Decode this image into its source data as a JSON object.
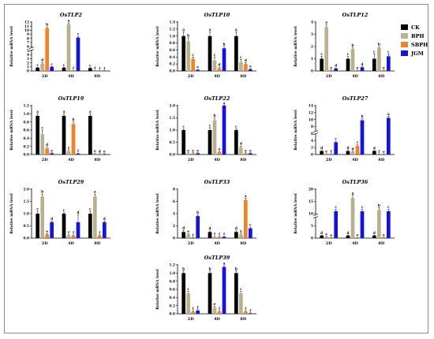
{
  "legend": {
    "placement": "top-right",
    "items": [
      {
        "name": "CK",
        "color": "#000000"
      },
      {
        "name": "BPH",
        "color": "#b9b08c"
      },
      {
        "name": "SBPH",
        "color": "#f58220"
      },
      {
        "name": "JGM",
        "color": "#1111ee"
      }
    ]
  },
  "chart_data": [
    {
      "type": "bar",
      "title": "OsTLP2",
      "ylabel": "Relative mRNA level",
      "categories": [
        "2D",
        "4D",
        "8D"
      ],
      "ylim": [
        0,
        12
      ],
      "yticks": [
        0,
        1,
        2,
        3,
        4,
        5,
        6,
        7,
        8,
        9,
        10,
        11,
        12
      ],
      "broken": true,
      "series": [
        {
          "name": "CK",
          "values": [
            0.8,
            0.8,
            0.7
          ],
          "errors": [
            0.1,
            0.1,
            0.1
          ],
          "letters": [
            "c",
            "c",
            "c"
          ]
        },
        {
          "name": "BPH",
          "values": [
            1.8,
            11.5,
            0.05
          ],
          "errors": [
            0.3,
            0.3,
            0.02
          ],
          "letters": [
            "d",
            "a",
            "f"
          ]
        },
        {
          "name": "SBPH",
          "values": [
            10.5,
            0.05,
            0.02
          ],
          "errors": [
            0.3,
            0.02,
            0.01
          ],
          "letters": [
            "b",
            "f",
            "f"
          ]
        },
        {
          "name": "JGM",
          "values": [
            1.0,
            8.2,
            0.02
          ],
          "errors": [
            0.1,
            0.3,
            0.01
          ],
          "letters": [
            "c",
            "c",
            "f"
          ]
        }
      ]
    },
    {
      "type": "bar",
      "title": "OsTLP10",
      "ylabel": "Relative mRNA level",
      "categories": [
        "2D",
        "4D",
        "8D"
      ],
      "ylim": [
        0,
        1.4
      ],
      "yticks": [
        0.0,
        0.2,
        0.4,
        0.6,
        0.8,
        1.0,
        1.2,
        1.4
      ],
      "broken": false,
      "series": [
        {
          "name": "CK",
          "values": [
            1.0,
            1.0,
            1.0
          ],
          "errors": [
            0.12,
            0.12,
            0.12
          ],
          "letters": [
            "a",
            "a",
            "a"
          ]
        },
        {
          "name": "BPH",
          "values": [
            0.85,
            0.3,
            0.25
          ],
          "errors": [
            0.1,
            0.1,
            0.08
          ],
          "letters": [
            "b",
            "c",
            "c"
          ]
        },
        {
          "name": "SBPH",
          "values": [
            0.35,
            0.08,
            0.2
          ],
          "errors": [
            0.05,
            0.03,
            0.04
          ],
          "letters": [
            "c",
            "d",
            "d"
          ]
        },
        {
          "name": "JGM",
          "values": [
            0.03,
            0.65,
            0.05
          ],
          "errors": [
            0.01,
            0.05,
            0.02
          ],
          "letters": [
            "e",
            "b",
            "e"
          ]
        }
      ]
    },
    {
      "type": "bar",
      "title": "OsTLP12",
      "ylabel": "Relative mRNA level",
      "categories": [
        "2D",
        "4D",
        "8D"
      ],
      "ylim": [
        0,
        4
      ],
      "yticks": [
        0,
        1,
        2,
        3,
        4
      ],
      "broken": false,
      "series": [
        {
          "name": "CK",
          "values": [
            1.0,
            1.0,
            1.0
          ],
          "errors": [
            0.2,
            0.2,
            0.4
          ],
          "letters": [
            "c",
            "c",
            "c"
          ]
        },
        {
          "name": "BPH",
          "values": [
            3.6,
            1.8,
            1.9
          ],
          "errors": [
            0.2,
            0.1,
            0.1
          ],
          "letters": [
            "a",
            "b",
            "b"
          ]
        },
        {
          "name": "SBPH",
          "values": [
            0.05,
            0.05,
            0.05
          ],
          "errors": [
            0.02,
            0.02,
            0.02
          ],
          "letters": [
            "e",
            "e",
            "e"
          ]
        },
        {
          "name": "JGM",
          "values": [
            0.2,
            0.3,
            1.2
          ],
          "errors": [
            0.05,
            0.05,
            0.2
          ],
          "letters": [
            "d",
            "d",
            "c"
          ]
        }
      ]
    },
    {
      "type": "bar",
      "title": "OsTLP19",
      "ylabel": "Relative mRNA level",
      "categories": [
        "2D",
        "4D",
        "8D"
      ],
      "ylim": [
        0,
        1.2
      ],
      "yticks": [
        0.0,
        0.2,
        0.4,
        0.6,
        0.8,
        1.0,
        1.2
      ],
      "broken": false,
      "series": [
        {
          "name": "CK",
          "values": [
            0.95,
            0.95,
            0.95
          ],
          "errors": [
            0.05,
            0.05,
            0.05
          ],
          "letters": [
            "a",
            "a",
            "a"
          ]
        },
        {
          "name": "BPH",
          "values": [
            0.5,
            0.08,
            0.02
          ],
          "errors": [
            0.1,
            0.02,
            0.01
          ],
          "letters": [
            "c",
            "f",
            "e"
          ]
        },
        {
          "name": "SBPH",
          "values": [
            0.15,
            0.75,
            0.01
          ],
          "errors": [
            0.03,
            0.05,
            0.01
          ],
          "letters": [
            "d",
            "b",
            "d"
          ]
        },
        {
          "name": "JGM",
          "values": [
            0.03,
            0.02,
            0.01
          ],
          "errors": [
            0.01,
            0.01,
            0.01
          ],
          "letters": [
            "e",
            "f",
            "e"
          ]
        }
      ]
    },
    {
      "type": "bar",
      "title": "OsTLP22",
      "ylabel": "Relative mRNA level",
      "categories": [
        "2D",
        "4D",
        "8D"
      ],
      "ylim": [
        0,
        2.0
      ],
      "yticks": [
        0.0,
        0.5,
        1.0,
        1.5,
        2.0
      ],
      "broken": false,
      "series": [
        {
          "name": "CK",
          "values": [
            1.0,
            1.0,
            1.0
          ],
          "errors": [
            0.05,
            0.1,
            0.05
          ],
          "letters": [
            "c",
            "c",
            "c"
          ]
        },
        {
          "name": "BPH",
          "values": [
            0.05,
            1.4,
            0.3
          ],
          "errors": [
            0.02,
            0.1,
            0.05
          ],
          "letters": [
            "e",
            "b",
            "d"
          ]
        },
        {
          "name": "SBPH",
          "values": [
            0.05,
            0.1,
            0.05
          ],
          "errors": [
            0.02,
            0.03,
            0.02
          ],
          "letters": [
            "e",
            "e",
            "e"
          ]
        },
        {
          "name": "JGM",
          "values": [
            0.05,
            2.0,
            0.05
          ],
          "errors": [
            0.02,
            0.05,
            0.02
          ],
          "letters": [
            "e",
            "a",
            "e"
          ]
        }
      ]
    },
    {
      "type": "bar",
      "title": "OsTLP27",
      "ylabel": "Relative mRNA level",
      "categories": [
        "2D",
        "4D",
        "8D"
      ],
      "ylim": [
        0,
        14
      ],
      "yticks": [
        0,
        2,
        4,
        6,
        8,
        10,
        12,
        14
      ],
      "broken": true,
      "series": [
        {
          "name": "CK",
          "values": [
            1.0,
            1.0,
            1.0
          ],
          "errors": [
            0.2,
            0.2,
            0.1
          ],
          "letters": [
            "d",
            "d",
            "d"
          ]
        },
        {
          "name": "BPH",
          "values": [
            0.2,
            0.8,
            0.1
          ],
          "errors": [
            0.05,
            0.1,
            0.05
          ],
          "letters": [
            "e",
            "d",
            "f"
          ]
        },
        {
          "name": "SBPH",
          "values": [
            0.2,
            2.5,
            0.1
          ],
          "errors": [
            0.05,
            0.3,
            0.05
          ],
          "letters": [
            "f",
            "c",
            "e"
          ]
        },
        {
          "name": "JGM",
          "values": [
            3.5,
            9.8,
            10.5
          ],
          "errors": [
            0.3,
            0.5,
            0.5
          ],
          "letters": [
            "c",
            "b",
            "a"
          ]
        }
      ]
    },
    {
      "type": "bar",
      "title": "OsTLP29",
      "ylabel": "Relative mRNA level",
      "categories": [
        "2D",
        "4D",
        "8D"
      ],
      "ylim": [
        0,
        2.0
      ],
      "yticks": [
        0.0,
        0.5,
        1.0,
        1.5,
        2.0
      ],
      "broken": false,
      "series": [
        {
          "name": "CK",
          "values": [
            1.0,
            1.0,
            1.0
          ],
          "errors": [
            0.1,
            0.05,
            0.1
          ],
          "letters": [
            "c",
            "c",
            "c"
          ]
        },
        {
          "name": "BPH",
          "values": [
            1.7,
            0.1,
            1.7
          ],
          "errors": [
            0.1,
            0.03,
            0.1
          ],
          "letters": [
            "b",
            "f",
            "a"
          ]
        },
        {
          "name": "SBPH",
          "values": [
            0.15,
            0.1,
            0.1
          ],
          "errors": [
            0.03,
            0.03,
            0.03
          ],
          "letters": [
            "e",
            "f",
            "f"
          ]
        },
        {
          "name": "JGM",
          "values": [
            0.65,
            0.65,
            0.65
          ],
          "errors": [
            0.05,
            0.3,
            0.05
          ],
          "letters": [
            "d",
            "d",
            "d"
          ]
        }
      ]
    },
    {
      "type": "bar",
      "title": "OsTLP33",
      "ylabel": "Relative mRNA level",
      "categories": [
        "2D",
        "4D",
        "8D"
      ],
      "ylim": [
        0,
        8
      ],
      "yticks": [
        0,
        2,
        4,
        6,
        8
      ],
      "broken": false,
      "series": [
        {
          "name": "CK",
          "values": [
            1.0,
            1.0,
            1.0
          ],
          "errors": [
            0.3,
            0.2,
            0.2
          ],
          "letters": [
            "d",
            "d",
            "d"
          ]
        },
        {
          "name": "BPH",
          "values": [
            0.6,
            0.2,
            0.6
          ],
          "errors": [
            0.1,
            0.05,
            0.2
          ],
          "letters": [
            "e",
            "f",
            "e"
          ]
        },
        {
          "name": "SBPH",
          "values": [
            0.05,
            0.2,
            6.2
          ],
          "errors": [
            0.02,
            0.05,
            0.3
          ],
          "letters": [
            "f",
            "f",
            "a"
          ]
        },
        {
          "name": "JGM",
          "values": [
            3.6,
            0.2,
            1.6
          ],
          "errors": [
            0.2,
            0.05,
            0.2
          ],
          "letters": [
            "b",
            "f",
            "c"
          ]
        }
      ]
    },
    {
      "type": "bar",
      "title": "OsTLP36",
      "ylabel": "Relative mRNA level",
      "categories": [
        "2D",
        "4D",
        "8D"
      ],
      "ylim": [
        0,
        20
      ],
      "yticks": [
        0,
        5,
        10,
        15,
        20
      ],
      "broken": true,
      "series": [
        {
          "name": "CK",
          "values": [
            1.0,
            1.0,
            1.0
          ],
          "errors": [
            0.2,
            0.2,
            0.2
          ],
          "letters": [
            "d",
            "d",
            "d"
          ]
        },
        {
          "name": "BPH",
          "values": [
            0.5,
            16.5,
            11.5
          ],
          "errors": [
            0.1,
            1.0,
            1.0
          ],
          "letters": [
            "e",
            "a",
            "b"
          ]
        },
        {
          "name": "SBPH",
          "values": [
            0.1,
            0.2,
            0.3
          ],
          "errors": [
            0.03,
            0.05,
            0.05
          ],
          "letters": [
            "e",
            "e",
            "e"
          ]
        },
        {
          "name": "JGM",
          "values": [
            11.0,
            11.0,
            11.0
          ],
          "errors": [
            0.8,
            0.8,
            0.8
          ],
          "letters": [
            "c",
            "c",
            "c"
          ]
        }
      ]
    },
    {
      "type": "bar",
      "title": "OsTLP39",
      "ylabel": "Relative mRNA level",
      "categories": [
        "2D",
        "4D",
        "8D"
      ],
      "ylim": [
        0,
        1.2
      ],
      "yticks": [
        0.0,
        0.2,
        0.4,
        0.6,
        0.8,
        1.0,
        1.2
      ],
      "broken": false,
      "series": [
        {
          "name": "CK",
          "values": [
            1.0,
            1.0,
            1.0
          ],
          "errors": [
            0.05,
            0.05,
            0.05
          ],
          "letters": [
            "b",
            "b",
            "b"
          ]
        },
        {
          "name": "BPH",
          "values": [
            0.5,
            0.15,
            0.5
          ],
          "errors": [
            0.05,
            0.03,
            0.05
          ],
          "letters": [
            "c",
            "e",
            "c"
          ]
        },
        {
          "name": "SBPH",
          "values": [
            0.05,
            0.05,
            0.05
          ],
          "errors": [
            0.02,
            0.02,
            0.02
          ],
          "letters": [
            "f",
            "f",
            "f"
          ]
        },
        {
          "name": "JGM",
          "values": [
            0.08,
            1.15,
            0.01
          ],
          "errors": [
            0.02,
            0.03,
            0.01
          ],
          "letters": [
            "f",
            "a",
            "f"
          ]
        }
      ]
    }
  ]
}
